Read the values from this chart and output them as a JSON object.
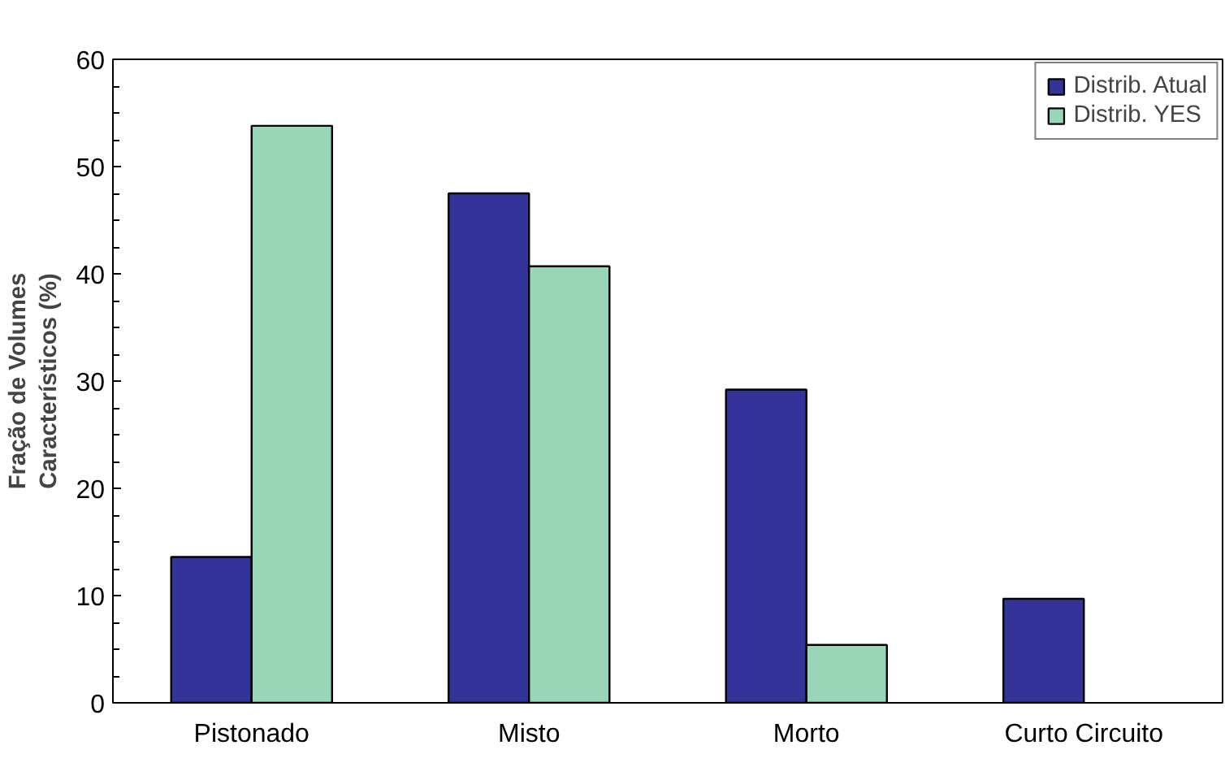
{
  "chart_data": {
    "type": "bar",
    "ylabel": "Fração de Volumes\nCaracterísticos (%)",
    "categories": [
      "Pistonado",
      "Misto",
      "Morto",
      "Curto Circuito"
    ],
    "series": [
      {
        "name": "Distrib. Atual",
        "color": "#333399",
        "values": [
          13.6,
          47.5,
          29.2,
          9.7
        ]
      },
      {
        "name": "Distrib. YES",
        "color": "#99d6b8",
        "values": [
          53.8,
          40.7,
          5.4,
          null
        ]
      }
    ],
    "ylim": [
      0,
      60
    ],
    "yticks": [
      0,
      10,
      20,
      30,
      40,
      50,
      60
    ],
    "grid": false,
    "legend": "top right"
  }
}
